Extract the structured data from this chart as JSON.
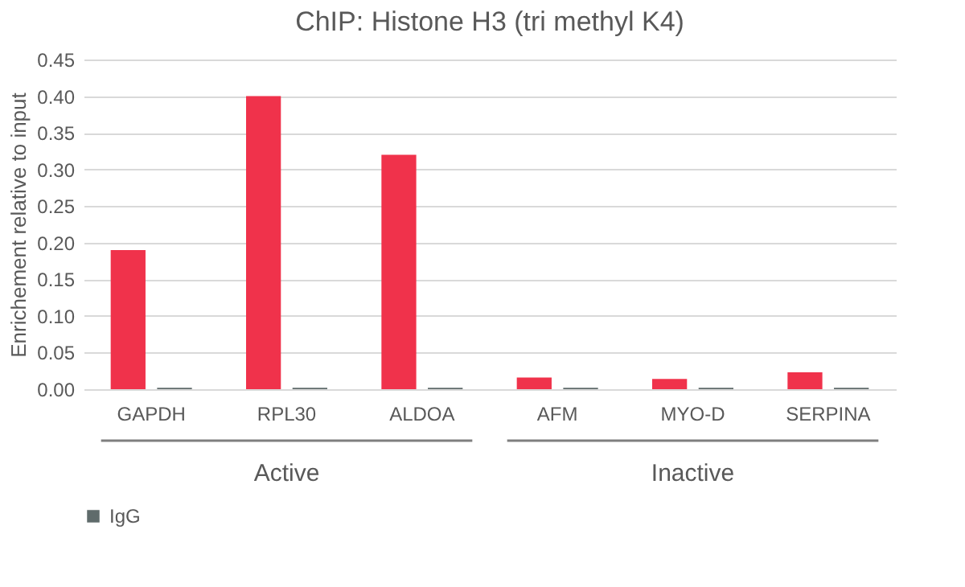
{
  "chart_data": {
    "type": "bar",
    "title": "ChIP: Histone H3 (tri methyl K4)",
    "ylabel": "Enrichement relative to input",
    "categories": [
      "GAPDH",
      "RPL30",
      "ALDOA",
      "AFM",
      "MYO-D",
      "SERPINA"
    ],
    "series": [
      {
        "color": "#f0324b",
        "values": [
          0.19,
          0.4,
          0.32,
          0.016,
          0.014,
          0.023
        ]
      },
      {
        "name": "IgG",
        "color": "#5f6b6b",
        "values": [
          0.002,
          0.002,
          0.002,
          0.002,
          0.002,
          0.002
        ]
      }
    ],
    "ylim": [
      0,
      0.45
    ],
    "yticks": [
      {
        "value": 0,
        "label": "0.00"
      },
      {
        "value": 0.05,
        "label": "0.05"
      },
      {
        "value": 0.1,
        "label": "0.10"
      },
      {
        "value": 0.15,
        "label": "0.15"
      },
      {
        "value": 0.2,
        "label": "0.20"
      },
      {
        "value": 0.25,
        "label": "0.25"
      },
      {
        "value": 0.3,
        "label": "0.30"
      },
      {
        "value": 0.35,
        "label": "0.35"
      },
      {
        "value": 0.4,
        "label": "0.40"
      },
      {
        "value": 0.45,
        "label": "0.45"
      }
    ],
    "grid": "y",
    "legend": "bottom",
    "annotations": [
      "Active",
      "Inactive"
    ]
  }
}
